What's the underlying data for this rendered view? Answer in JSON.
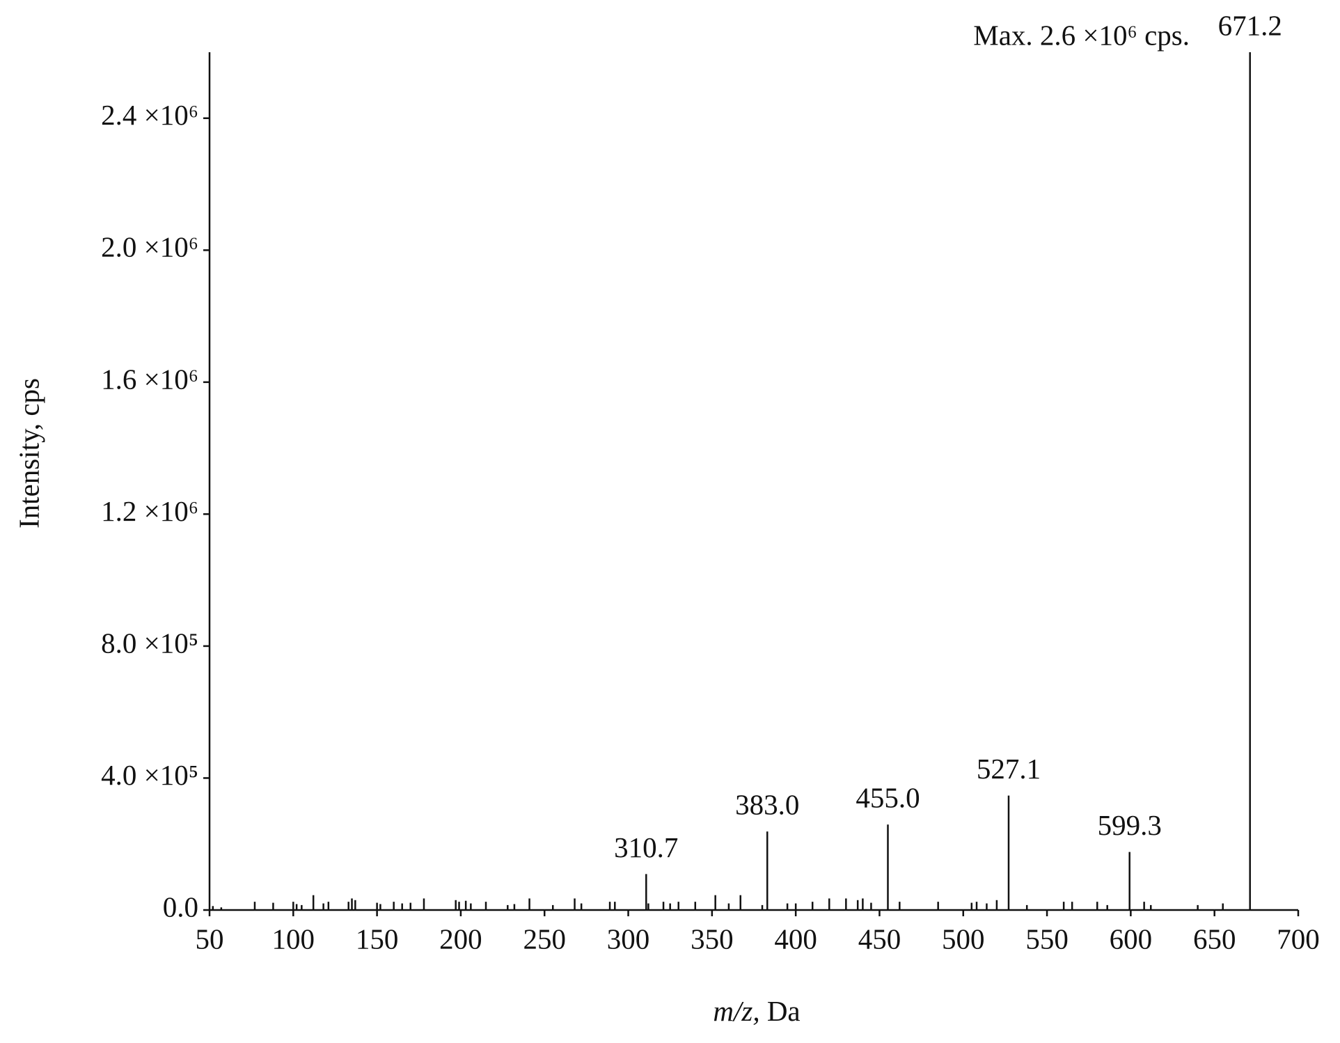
{
  "chart_data": {
    "type": "stem",
    "annotation": "Max. 2.6 ×10⁶ cps.",
    "ylabel": "Intensity, cps",
    "xlabel": {
      "italic": "m/z,",
      "text": "Da"
    },
    "xlim": [
      50,
      700
    ],
    "xticks": [
      50,
      100,
      150,
      200,
      250,
      300,
      350,
      400,
      450,
      500,
      550,
      600,
      650,
      700
    ],
    "ylim": [
      0,
      2600000
    ],
    "yticks": [
      {
        "value": 0,
        "label": "0.0"
      },
      {
        "value": 400000,
        "label": "4.0 ×10⁵"
      },
      {
        "value": 800000,
        "label": "8.0 ×10⁵"
      },
      {
        "value": 1200000,
        "label": "1.2 ×10⁶"
      },
      {
        "value": 1600000,
        "label": "1.6 ×10⁶"
      },
      {
        "value": 2000000,
        "label": "2.0 ×10⁶"
      },
      {
        "value": 2400000,
        "label": "2.4 ×10⁶"
      }
    ],
    "series": [
      {
        "name": "labeled peaks",
        "color": "#111111",
        "x": [
          310.7,
          383.0,
          455.0,
          527.1,
          599.3,
          671.2
        ],
        "values": [
          109000,
          238000,
          259000,
          347000,
          176000,
          2600000
        ],
        "labels": [
          "310.7",
          "383.0",
          "455.0",
          "527.1",
          "599.3",
          "671.2"
        ]
      },
      {
        "name": "minor peaks",
        "color": "#111111",
        "x": [
          52,
          57,
          77,
          88,
          100,
          102,
          105,
          112,
          118,
          121,
          133,
          135,
          137,
          150,
          152,
          160,
          165,
          170,
          178,
          197,
          199,
          203,
          206,
          215,
          228,
          232,
          241,
          255,
          268,
          272,
          289,
          292,
          312,
          321,
          325,
          330,
          340,
          352,
          360,
          367,
          380,
          395,
          400,
          410,
          420,
          430,
          437,
          440,
          445,
          462,
          485,
          505,
          508,
          514,
          520,
          538,
          560,
          565,
          580,
          586,
          608,
          612,
          640,
          655
        ],
        "values": [
          12000,
          8000,
          25000,
          22000,
          25000,
          18000,
          15000,
          45000,
          20000,
          25000,
          25000,
          35000,
          30000,
          22000,
          18000,
          25000,
          20000,
          22000,
          35000,
          30000,
          25000,
          28000,
          20000,
          25000,
          15000,
          18000,
          35000,
          15000,
          35000,
          20000,
          25000,
          25000,
          20000,
          25000,
          20000,
          25000,
          25000,
          45000,
          20000,
          45000,
          15000,
          20000,
          20000,
          25000,
          35000,
          35000,
          30000,
          35000,
          22000,
          25000,
          25000,
          22000,
          25000,
          20000,
          30000,
          15000,
          25000,
          25000,
          25000,
          15000,
          25000,
          15000,
          15000,
          20000
        ]
      }
    ]
  }
}
